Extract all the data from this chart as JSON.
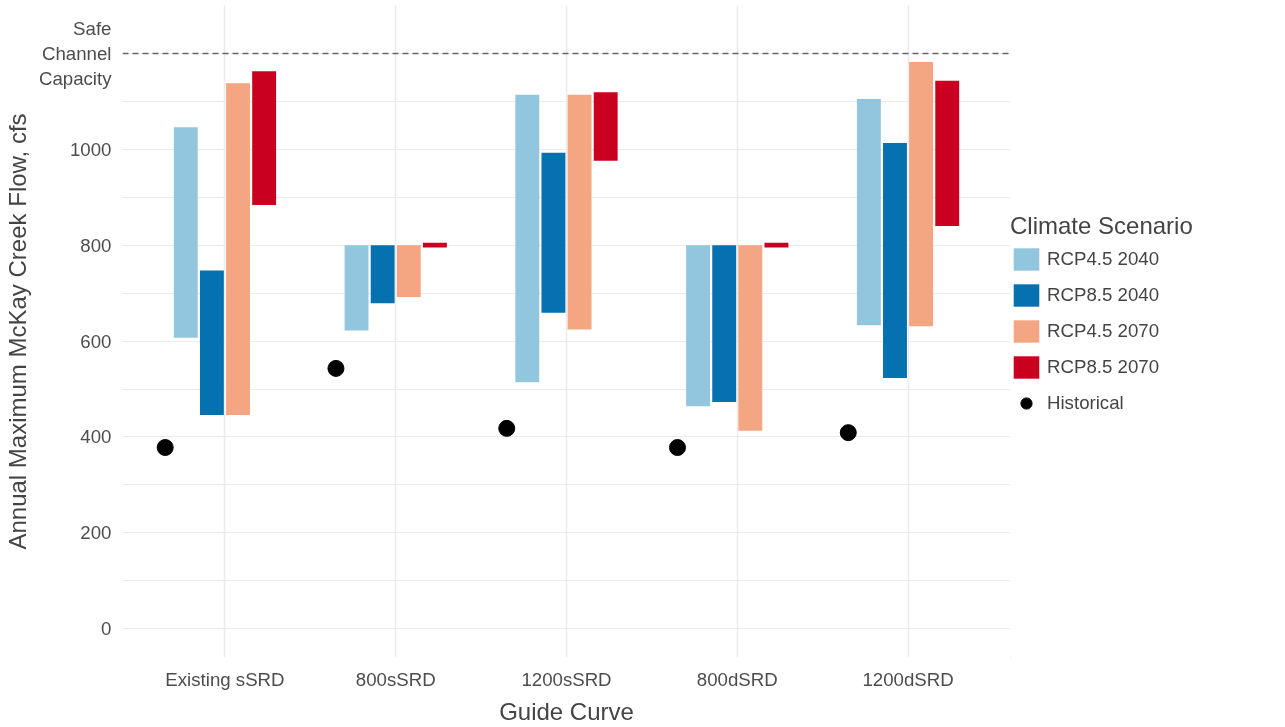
{
  "chart_data": {
    "type": "bar",
    "xlabel": "Guide Curve",
    "ylabel": "Annual Maximum McKay Creek Flow, cfs",
    "legend_title": "Climate Scenario",
    "categories": [
      "Existing sSRD",
      "800sSRD",
      "1200sSRD",
      "800dSRD",
      "1200dSRD"
    ],
    "series": [
      {
        "name": "RCP4.5 2040",
        "color": "#92c5de",
        "base": [
          607,
          622,
          514,
          464,
          633
        ],
        "values": [
          439,
          178,
          600,
          336,
          472
        ]
      },
      {
        "name": "RCP8.5 2040",
        "color": "#0571b0",
        "base": [
          446,
          679,
          659,
          473,
          523
        ],
        "values": [
          301,
          121,
          334,
          327,
          490
        ]
      },
      {
        "name": "RCP4.5 2070",
        "color": "#f4a582",
        "base": [
          446,
          692,
          624,
          413,
          631
        ],
        "values": [
          692,
          108,
          490,
          387,
          551
        ]
      },
      {
        "name": "RCP8.5 2070",
        "color": "#ca0020",
        "base": [
          884,
          795,
          976,
          795,
          840
        ],
        "values": [
          279,
          10,
          143,
          10,
          303
        ]
      },
      {
        "name": "Historical",
        "type": "scatter",
        "color": "#000000",
        "x": [
          "Existing sSRD",
          "800sSRD",
          "1200sSRD",
          "800dSRD",
          "1200dSRD"
        ],
        "values": [
          378,
          543,
          418,
          378,
          409
        ]
      }
    ],
    "ylim": [
      -60,
      1300
    ],
    "yticks": [
      0,
      {
        "value": 100,
        "label": null
      },
      200,
      {
        "value": 300,
        "label": null
      },
      400,
      {
        "value": 500,
        "label": null
      },
      600,
      {
        "value": 700,
        "label": null
      },
      800,
      {
        "value": 900,
        "label": null
      },
      1000,
      {
        "value": 1100,
        "label": null
      },
      {
        "value": 1200,
        "label": "Safe\nChannel\nCapacity"
      }
    ],
    "ref_lines": [
      {
        "axis": "y",
        "value": 1200,
        "color": "#666666",
        "line_style": "dashed"
      }
    ],
    "grid": true,
    "legend": "right",
    "marker": "circle"
  }
}
